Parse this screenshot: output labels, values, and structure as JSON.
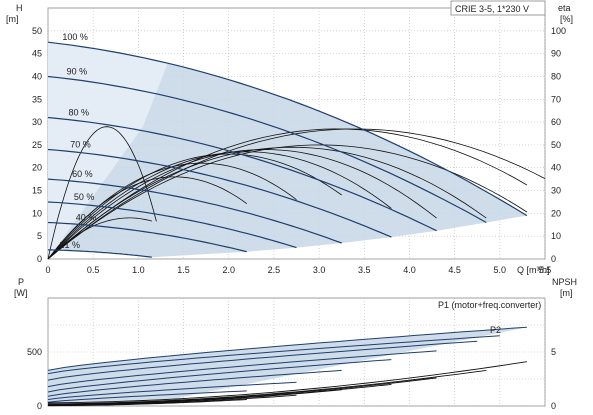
{
  "chart_data": [
    {
      "type": "line",
      "title": "CRIE 3-5, 1*230 V",
      "xlabel": "Q [m³/h]",
      "ylabel_left": [
        "H",
        "[m]"
      ],
      "ylabel_right": [
        "eta",
        "[%]"
      ],
      "xlim": [
        0,
        5.5
      ],
      "ylim_left": [
        0,
        55
      ],
      "ylim_right": [
        0,
        110
      ],
      "x_ticks": [
        "0",
        "0.5",
        "1.0",
        "1.5",
        "2.0",
        "2.5",
        "3.0",
        "3.5",
        "4.0",
        "4.5",
        "5.0",
        "5.5"
      ],
      "y_ticks_left": [
        "0",
        "5",
        "10",
        "15",
        "20",
        "25",
        "30",
        "35",
        "40",
        "45",
        "50"
      ],
      "y_ticks_right": [
        "0",
        "10",
        "20",
        "30",
        "40",
        "50",
        "60",
        "70",
        "80",
        "90",
        "100"
      ],
      "grid": true,
      "speed_curves": [
        {
          "name": "100 %",
          "h0": 47.5,
          "qmax": 5.3
        },
        {
          "name": "90 %",
          "h0": 40.0,
          "qmax": 4.85
        },
        {
          "name": "80 %",
          "h0": 31.0,
          "qmax": 4.3
        },
        {
          "name": "70 %",
          "h0": 24.0,
          "qmax": 3.8
        },
        {
          "name": "60 %",
          "h0": 17.5,
          "qmax": 3.25
        },
        {
          "name": "50 %",
          "h0": 12.5,
          "qmax": 2.75
        },
        {
          "name": "40 %",
          "h0": 8.0,
          "qmax": 2.2
        },
        {
          "name": "21 %",
          "h0": 2.0,
          "qmax": 1.15
        }
      ],
      "efficiency_curves": [
        {
          "peak_q": 0.65,
          "peak_eta": 58,
          "qmax": 1.2
        },
        {
          "peak_q": 0.9,
          "peak_eta": 18,
          "qmax": 1.15
        },
        {
          "peak_q": 1.4,
          "peak_eta": 36,
          "qmax": 2.2
        },
        {
          "peak_q": 1.7,
          "peak_eta": 42,
          "qmax": 2.75
        },
        {
          "peak_q": 2.0,
          "peak_eta": 46,
          "qmax": 3.25
        },
        {
          "peak_q": 2.2,
          "peak_eta": 47,
          "qmax": 3.8
        },
        {
          "peak_q": 2.4,
          "peak_eta": 48,
          "qmax": 4.3
        },
        {
          "peak_q": 2.7,
          "peak_eta": 49,
          "qmax": 4.85
        },
        {
          "peak_q": 3.0,
          "peak_eta": 50,
          "qmax": 5.3
        },
        {
          "peak_q": 3.2,
          "peak_eta": 57,
          "qmax": 5.3
        },
        {
          "peak_q": 3.4,
          "peak_eta": 57,
          "qmax": 5.5
        }
      ]
    },
    {
      "type": "line",
      "xlabel": "",
      "ylabel_left": [
        "P",
        "[W]"
      ],
      "ylabel_right": [
        "NPSH",
        "[m]"
      ],
      "xlim": [
        0,
        5.5
      ],
      "ylim_left": [
        0,
        1000
      ],
      "ylim_right": [
        0,
        10
      ],
      "y_ticks_left": [
        "0",
        "500"
      ],
      "y_ticks_right": [
        "0",
        "5"
      ],
      "grid": true,
      "series": [
        {
          "name": "P1 (motor+freq.converter)",
          "values_start": 330,
          "values_end": 730,
          "qmax": 5.3
        },
        {
          "name": "P2",
          "values_start": 0,
          "values_end": 390,
          "qmax": 5.3
        }
      ],
      "power_curves": [
        {
          "p_start": 330,
          "p_end": 730,
          "qmax": 5.3
        },
        {
          "p_start": 300,
          "p_end": 650,
          "qmax": 5.0
        },
        {
          "p_start": 240,
          "p_end": 600,
          "qmax": 4.75
        },
        {
          "p_start": 180,
          "p_end": 510,
          "qmax": 4.3
        },
        {
          "p_start": 130,
          "p_end": 430,
          "qmax": 3.8
        },
        {
          "p_start": 90,
          "p_end": 330,
          "qmax": 3.25
        },
        {
          "p_start": 60,
          "p_end": 220,
          "qmax": 2.75
        },
        {
          "p_start": 35,
          "p_end": 140,
          "qmax": 2.2
        },
        {
          "p_start": 10,
          "p_end": 25,
          "qmax": 1.15
        }
      ],
      "npsh_curves": [
        {
          "n_start": 0.3,
          "n_end": 4.1,
          "qmax": 5.3
        },
        {
          "n_start": 0.2,
          "n_end": 3.3,
          "qmax": 4.85
        },
        {
          "n_start": 0.15,
          "n_end": 2.6,
          "qmax": 4.3
        },
        {
          "n_start": 0.1,
          "n_end": 2.0,
          "qmax": 3.8
        },
        {
          "n_start": 0.08,
          "n_end": 1.5,
          "qmax": 3.25
        },
        {
          "n_start": 0.05,
          "n_end": 1.0,
          "qmax": 2.75
        },
        {
          "n_start": 0.03,
          "n_end": 0.6,
          "qmax": 2.2
        }
      ]
    }
  ]
}
